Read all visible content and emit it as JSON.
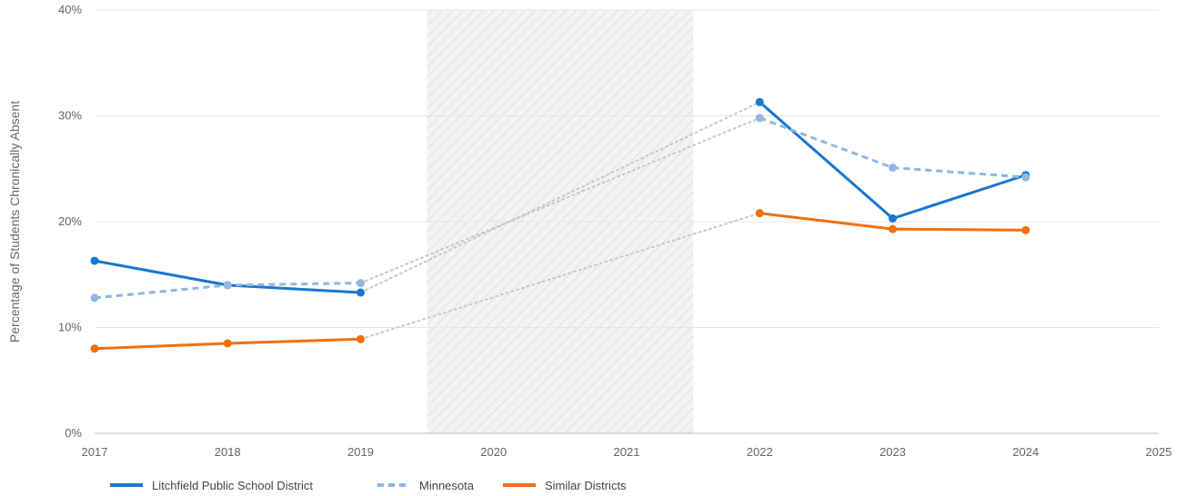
{
  "chart_data": {
    "type": "line",
    "ylabel": "Percentage of Students Chronically Absent",
    "xlabel": "",
    "x_ticks": [
      "2017",
      "2018",
      "2019",
      "2020",
      "2021",
      "2022",
      "2023",
      "2024",
      "2025"
    ],
    "y_ticks": [
      "0%",
      "10%",
      "20%",
      "30%",
      "40%"
    ],
    "xlim": [
      2017,
      2025
    ],
    "ylim": [
      0,
      40
    ],
    "grid": true,
    "gap_band": [
      2019.5,
      2021.5
    ],
    "legend_position": "bottom-left",
    "series": [
      {
        "name": "Litchfield Public School District",
        "color": "#1976d2",
        "style": "solid",
        "x": [
          2017,
          2018,
          2019,
          2022,
          2023,
          2024
        ],
        "values": [
          16.3,
          14.0,
          13.3,
          31.3,
          20.3,
          24.4
        ]
      },
      {
        "name": "Minnesota",
        "color": "#8fb8e3",
        "style": "dashed",
        "x": [
          2017,
          2018,
          2019,
          2022,
          2023,
          2024
        ],
        "values": [
          12.8,
          14.0,
          14.2,
          29.8,
          25.1,
          24.2
        ]
      },
      {
        "name": "Similar Districts",
        "color": "#f07010",
        "style": "solid",
        "x": [
          2017,
          2018,
          2019,
          2022,
          2023,
          2024
        ],
        "values": [
          8.0,
          8.5,
          8.9,
          20.8,
          19.3,
          19.2
        ]
      }
    ]
  }
}
